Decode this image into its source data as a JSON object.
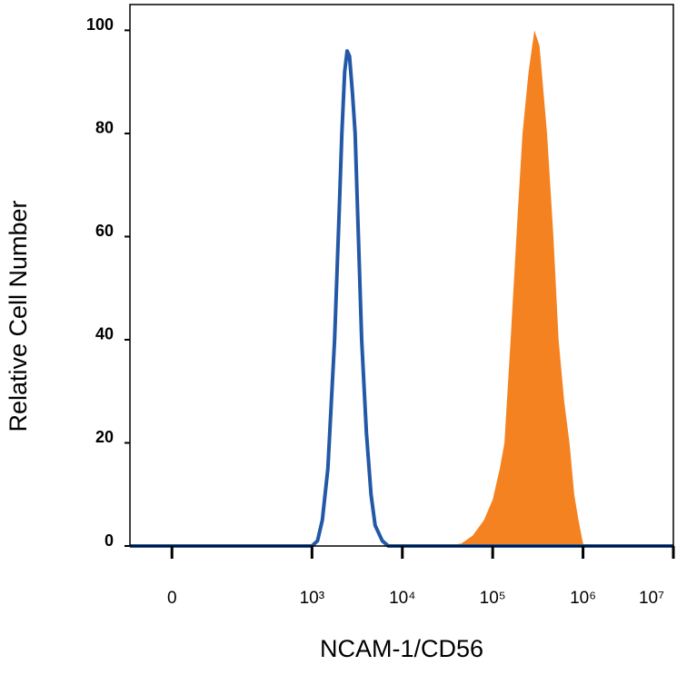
{
  "chart_data": {
    "type": "histogram-overlay",
    "xlabel": "NCAM-1/CD56",
    "ylabel": "Relative Cell Number",
    "xscale": "symlog",
    "linthresh": 1000,
    "xlim": [
      -300,
      10000000
    ],
    "xticks": [
      0,
      {
        "value": 1000,
        "label": "10³"
      },
      {
        "value": 10000,
        "label": "10⁴"
      },
      {
        "value": 100000,
        "label": "10⁵"
      },
      {
        "value": 1000000,
        "label": "10⁶"
      },
      {
        "value": 10000000,
        "label": "10⁷"
      }
    ],
    "ylim": [
      0,
      105
    ],
    "yticks": [
      0,
      20,
      40,
      60,
      80,
      100
    ],
    "series": [
      {
        "style": "filled",
        "color": "#f58220",
        "x": [
          -300,
          30000,
          45000,
          60000,
          80000,
          100000,
          120000,
          135000,
          158000,
          190000,
          214000,
          250000,
          290000,
          330000,
          400000,
          470000,
          537000,
          620000,
          708000,
          800000,
          890000,
          1000000,
          1100000,
          10000000
        ],
        "values": [
          0,
          0,
          0.5,
          2,
          5,
          9,
          15,
          20,
          40,
          65,
          80,
          92,
          100,
          97,
          80,
          60,
          40,
          28,
          20,
          10,
          5,
          0.5,
          0,
          0
        ]
      },
      {
        "style": "outline",
        "color": "#2358a6",
        "x": [
          -300,
          500,
          1000,
          1150,
          1300,
          1500,
          1780,
          2000,
          2140,
          2300,
          2450,
          2600,
          2800,
          3000,
          3550,
          4000,
          4500,
          5000,
          6000,
          7000,
          10000000
        ],
        "values": [
          0,
          0,
          0,
          1,
          5,
          15,
          40,
          65,
          80,
          92,
          96,
          95,
          88,
          80,
          40,
          22,
          10,
          4,
          1,
          0,
          0
        ]
      }
    ]
  }
}
